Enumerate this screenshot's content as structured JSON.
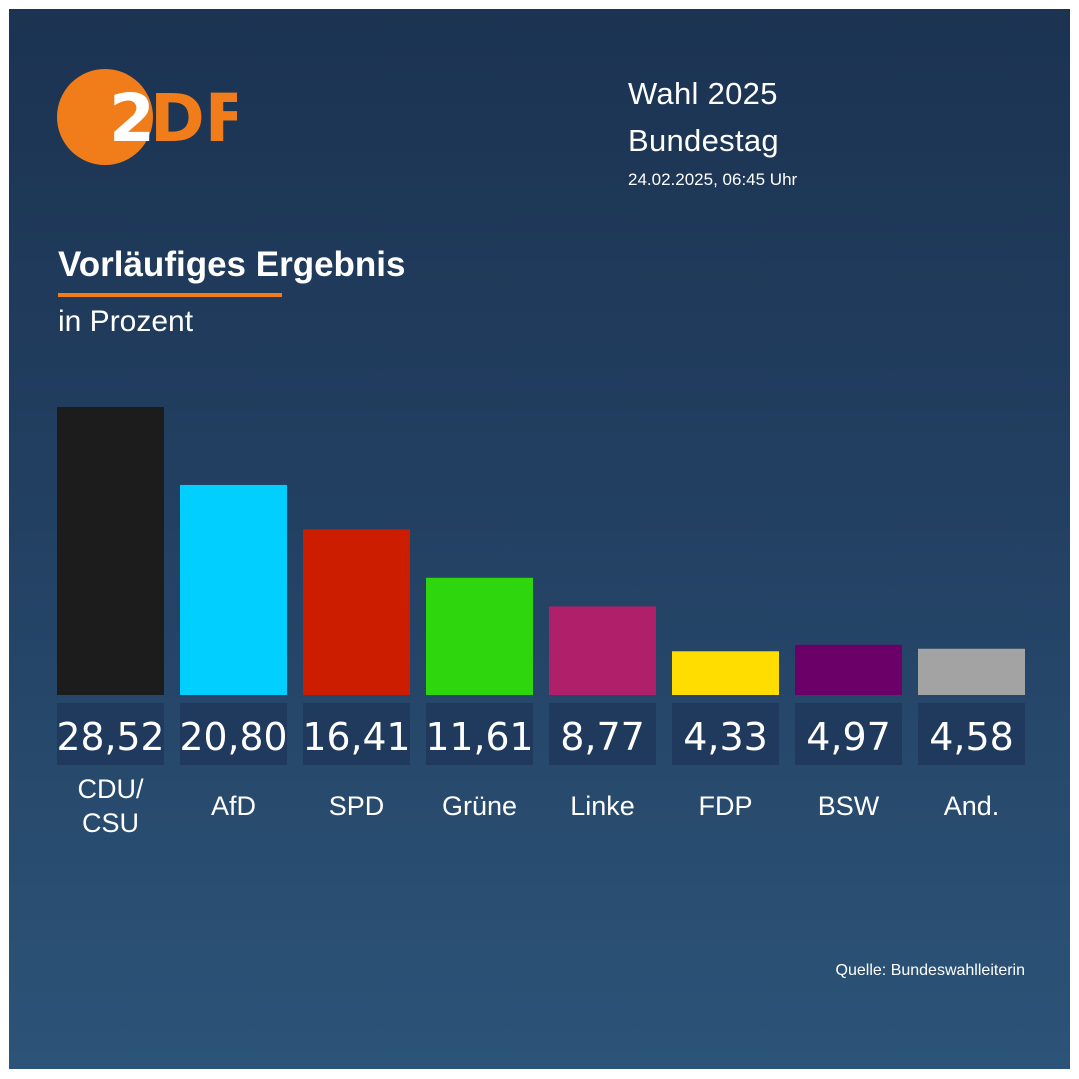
{
  "header": {
    "title": "Wahl 2025",
    "subtitle": "Bundestag",
    "timestamp": "24.02.2025, 06:45 Uhr"
  },
  "brand": {
    "logo_text": "2DF",
    "logo_color": "#f07d19"
  },
  "colors": {
    "accent": "#f07d19",
    "value_box": "#1f3a5c"
  },
  "chart_data": {
    "type": "bar",
    "title": "Vorläufiges Ergebnis",
    "subtitle": "in Prozent",
    "ylim": [
      0,
      30
    ],
    "categories": [
      "CDU/\nCSU",
      "AfD",
      "SPD",
      "Grüne",
      "Linke",
      "FDP",
      "BSW",
      "And."
    ],
    "values": [
      28.52,
      20.8,
      16.41,
      11.61,
      8.77,
      4.33,
      4.97,
      4.58
    ],
    "value_labels": [
      "28,52",
      "20,80",
      "16,41",
      "11,61",
      "8,77",
      "4,33",
      "4,97",
      "4,58"
    ],
    "colors": [
      "#1c1c1c",
      "#00cfff",
      "#cc1d00",
      "#2ed60e",
      "#b0206a",
      "#ffdd00",
      "#6a0068",
      "#a3a3a3"
    ],
    "xlabel": "",
    "ylabel": ""
  },
  "footer": {
    "source": "Quelle: Bundeswahlleiterin"
  }
}
